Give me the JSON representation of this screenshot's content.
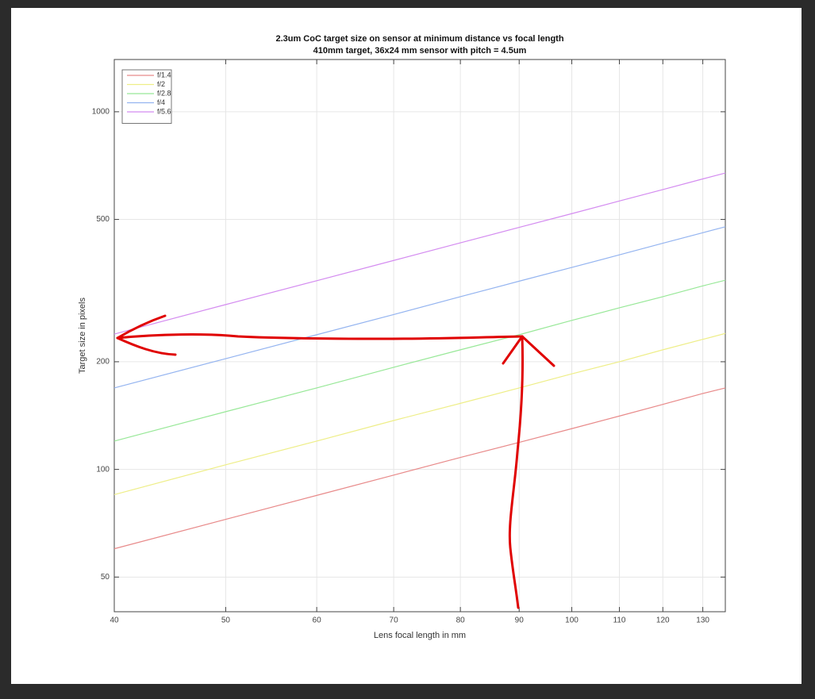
{
  "chart_data": {
    "type": "line",
    "title": "2.3um CoC target size on sensor at minimum distance vs focal length",
    "subtitle": "410mm target, 36x24 mm sensor with pitch = 4.5um",
    "x_label": "Lens focal length in mm",
    "y_label": "Target size in pixels",
    "x": [
      40,
      50,
      60,
      70,
      80,
      90,
      100,
      110,
      120,
      130,
      136
    ],
    "series": [
      {
        "name": "f/1.4",
        "color": "#e88a8a",
        "values": [
          60,
          72.5,
          84.6,
          96.4,
          108,
          119,
          130,
          141,
          152,
          163,
          169
        ]
      },
      {
        "name": "f/2",
        "color": "#eeee88",
        "values": [
          85,
          103,
          120,
          137,
          153,
          169,
          185,
          200,
          216,
          231,
          240
        ]
      },
      {
        "name": "f/2.8",
        "color": "#98e898",
        "values": [
          120,
          145,
          169,
          193,
          216,
          238,
          261,
          283,
          304,
          326,
          338
        ]
      },
      {
        "name": "f/4",
        "color": "#94b4f0",
        "values": [
          169,
          204,
          238,
          271,
          304,
          336,
          367,
          398,
          429,
          459,
          477
        ]
      },
      {
        "name": "f/5.6",
        "color": "#d48cf0",
        "values": [
          239,
          289,
          337,
          384,
          430,
          475,
          519,
          563,
          606,
          649,
          674
        ]
      }
    ],
    "xlim": [
      40,
      136
    ],
    "ylim": [
      40,
      1400
    ],
    "xticks": [
      40,
      50,
      60,
      70,
      80,
      90,
      100,
      110,
      120,
      130
    ],
    "yticks": [
      50,
      100,
      200,
      500,
      1000
    ],
    "xscale": "log",
    "yscale": "log",
    "grid": true,
    "legend": "northwest"
  }
}
